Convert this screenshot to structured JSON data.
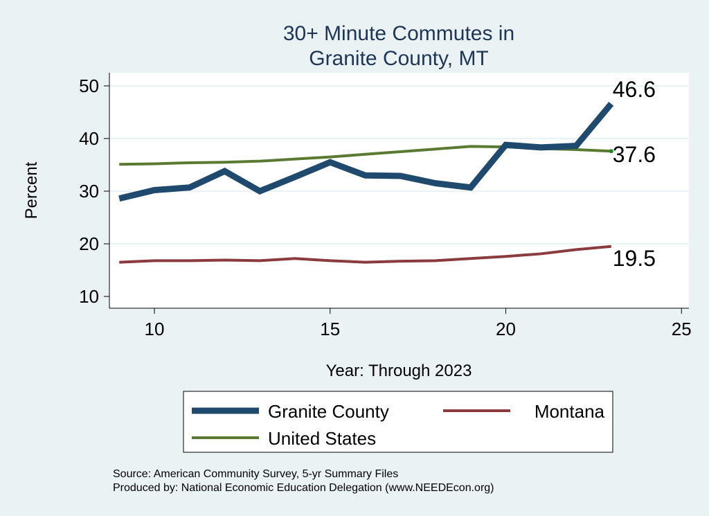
{
  "chart_data": {
    "type": "line",
    "title": [
      "30+ Minute Commutes in",
      "Granite County, MT"
    ],
    "xlabel": "Year: Through 2023",
    "ylabel": "Percent",
    "xlim": [
      8.7,
      25.3
    ],
    "ylim": [
      8.5,
      52.5
    ],
    "xticks": [
      10,
      15,
      20,
      25
    ],
    "yticks": [
      10,
      20,
      30,
      40,
      50
    ],
    "grid": true,
    "legend_position": "bottom",
    "x": [
      9,
      10,
      11,
      12,
      13,
      14,
      15,
      16,
      17,
      18,
      19,
      20,
      21,
      22,
      23
    ],
    "series": [
      {
        "name": "Granite County",
        "color": "#1f4a6e",
        "values": [
          28.6,
          30.2,
          30.7,
          33.8,
          30.0,
          32.7,
          35.5,
          33.0,
          32.9,
          31.5,
          30.7,
          38.8,
          38.3,
          38.6,
          46.6
        ],
        "end_label": "46.6"
      },
      {
        "name": "Montana",
        "color": "#8b3a3e",
        "values": [
          16.5,
          16.8,
          16.8,
          16.9,
          16.8,
          17.2,
          16.8,
          16.5,
          16.7,
          16.8,
          17.2,
          17.6,
          18.1,
          18.9,
          19.5
        ],
        "end_label": "19.5"
      },
      {
        "name": "United States",
        "color": "#5a7a32",
        "values": [
          35.1,
          35.2,
          35.4,
          35.5,
          35.7,
          36.1,
          36.5,
          37.0,
          37.5,
          38.0,
          38.5,
          38.4,
          38.1,
          37.9,
          37.6
        ],
        "end_label": "37.6"
      }
    ]
  },
  "footer": {
    "source": "Source: American Community Survey, 5-yr Summary Files",
    "produced": "Produced by: National Economic Education Delegation (www.NEEDEcon.org)"
  }
}
